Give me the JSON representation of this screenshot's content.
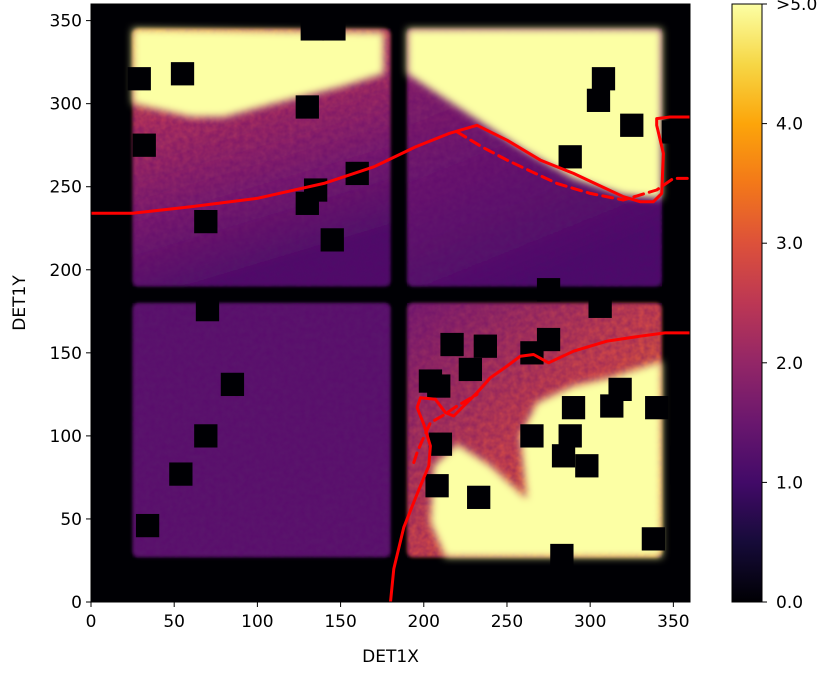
{
  "chart_data": {
    "type": "heatmap",
    "xlabel": "DET1X",
    "ylabel": "DET1Y",
    "xlim": [
      0,
      360
    ],
    "ylim": [
      0,
      360
    ],
    "x_ticks": [
      0,
      50,
      100,
      150,
      200,
      250,
      300,
      350
    ],
    "y_ticks": [
      0,
      50,
      100,
      150,
      200,
      250,
      300,
      350
    ],
    "colormap": "inferno",
    "colorbar": {
      "vmin": 0.0,
      "vmax": 5.0,
      "ticks": [
        {
          "value": 0.0,
          "label": "0.0"
        },
        {
          "value": 1.0,
          "label": "1.0"
        },
        {
          "value": 2.0,
          "label": "2.0"
        },
        {
          "value": 3.0,
          "label": "3.0"
        },
        {
          "value": 4.0,
          "label": "4.0"
        },
        {
          "value": 5.0,
          "label": ">5.0"
        }
      ]
    },
    "quadrants": [
      {
        "name": "top-left",
        "x": [
          25,
          180
        ],
        "y": [
          190,
          345
        ],
        "level": 2.6,
        "saturated_region": "upper band"
      },
      {
        "name": "top-right",
        "x": [
          190,
          343
        ],
        "y": [
          190,
          345
        ],
        "level": 2.0,
        "saturated_region": "upper-right triangle"
      },
      {
        "name": "bottom-left",
        "x": [
          25,
          180
        ],
        "y": [
          27,
          180
        ],
        "level": 1.3
      },
      {
        "name": "bottom-right",
        "x": [
          190,
          343
        ],
        "y": [
          27,
          180
        ],
        "level": 2.8,
        "saturated_region": "lower-right wedge"
      }
    ],
    "masked_squares": [
      [
        133,
        345
      ],
      [
        146,
        345
      ],
      [
        29,
        315
      ],
      [
        55,
        318
      ],
      [
        130,
        298
      ],
      [
        32,
        275
      ],
      [
        135,
        248
      ],
      [
        130,
        240
      ],
      [
        69,
        229
      ],
      [
        145,
        218
      ],
      [
        160,
        258
      ],
      [
        308,
        315
      ],
      [
        305,
        302
      ],
      [
        325,
        287
      ],
      [
        288,
        268
      ],
      [
        350,
        283
      ],
      [
        275,
        188
      ],
      [
        306,
        178
      ],
      [
        217,
        155
      ],
      [
        237,
        154
      ],
      [
        265,
        150
      ],
      [
        275,
        158
      ],
      [
        228,
        140
      ],
      [
        204,
        133
      ],
      [
        209,
        130
      ],
      [
        290,
        117
      ],
      [
        318,
        128
      ],
      [
        313,
        118
      ],
      [
        340,
        117
      ],
      [
        265,
        100
      ],
      [
        288,
        100
      ],
      [
        284,
        88
      ],
      [
        298,
        82
      ],
      [
        210,
        95
      ],
      [
        208,
        70
      ],
      [
        233,
        63
      ],
      [
        355,
        87
      ],
      [
        355,
        78
      ],
      [
        338,
        38
      ],
      [
        283,
        28
      ],
      [
        34,
        46
      ],
      [
        54,
        77
      ],
      [
        69,
        100
      ],
      [
        85,
        131
      ],
      [
        70,
        176
      ]
    ],
    "series": [
      {
        "style": "solid",
        "color": "#ff0000",
        "x": [
          0,
          25,
          60,
          100,
          140,
          170,
          195,
          215,
          232,
          250,
          270,
          290,
          305,
          320,
          330,
          338,
          343,
          344,
          340,
          340,
          348,
          360
        ],
        "y": [
          234,
          234,
          238,
          243,
          252,
          262,
          274,
          282,
          287,
          278,
          266,
          258,
          251,
          244,
          241,
          241,
          246,
          270,
          287,
          291,
          292,
          292
        ]
      },
      {
        "style": "dashed",
        "color": "#ff0000",
        "x": [
          220,
          235,
          250,
          265,
          280,
          300,
          320,
          340,
          350,
          360
        ],
        "y": [
          283,
          274,
          266,
          259,
          252,
          246,
          242,
          248,
          255,
          255
        ]
      },
      {
        "style": "solid",
        "color": "#ff0000",
        "x": [
          180,
          182,
          188,
          196,
          203,
          204,
          200,
          196,
          198,
          207,
          213,
          218,
          224,
          232,
          240,
          250,
          258,
          266,
          275,
          290,
          310,
          330,
          345,
          360
        ],
        "y": [
          0,
          20,
          45,
          65,
          82,
          94,
          107,
          117,
          123,
          122,
          114,
          112,
          118,
          126,
          135,
          142,
          148,
          149,
          144,
          151,
          157,
          160,
          162,
          162
        ]
      },
      {
        "style": "dashed",
        "color": "#ff0000",
        "x": [
          194,
          196,
          199,
          204,
          211,
          220,
          232
        ],
        "y": [
          84,
          90,
          97,
          108,
          112,
          118,
          125
        ]
      }
    ]
  }
}
